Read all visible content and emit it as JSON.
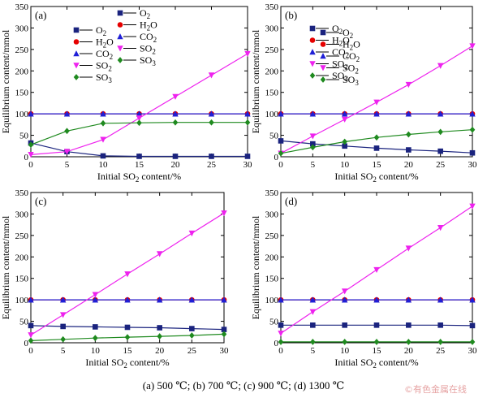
{
  "caption": "(a) 500 ℃; (b) 700 ℃; (c) 900 ℃; (d) 1300 ℃",
  "watermark": "©有色金属在线",
  "colors": {
    "O2": "#1a237e",
    "H2O": "#e60000",
    "CO2": "#1f1fd6",
    "SO2": "#ee22ee",
    "SO3": "#1f8a1f"
  },
  "chart_data": [
    {
      "type": "line",
      "panel_label": "(a)",
      "xlabel_parts": [
        "Initial SO",
        "2",
        " content/%"
      ],
      "ylabel": "Equilibrium content/mmol",
      "xlim": [
        0,
        30
      ],
      "ylim": [
        0,
        350
      ],
      "xticks": [
        0,
        5,
        10,
        15,
        20,
        25,
        30
      ],
      "yticks": [
        0,
        50,
        100,
        150,
        200,
        250,
        300,
        350
      ],
      "legend_pos": "upper-center",
      "series": [
        {
          "key": "O2",
          "label": "O",
          "sub": "2",
          "marker": "square",
          "x": [
            0,
            5,
            10,
            15,
            20,
            25,
            30
          ],
          "y": [
            32,
            12,
            2,
            1,
            1,
            1,
            1
          ]
        },
        {
          "key": "H2O",
          "label": "H",
          "sub": "2",
          "label2": "O",
          "marker": "circle",
          "x": [
            0,
            5,
            10,
            15,
            20,
            25,
            30
          ],
          "y": [
            100,
            100,
            100,
            100,
            100,
            100,
            100
          ]
        },
        {
          "key": "CO2",
          "label": "CO",
          "sub": "2",
          "marker": "triangle-up",
          "x": [
            0,
            5,
            10,
            15,
            20,
            25,
            30
          ],
          "y": [
            100,
            100,
            100,
            100,
            100,
            100,
            100
          ]
        },
        {
          "key": "SO2",
          "label": "SO",
          "sub": "2",
          "marker": "triangle-down",
          "x": [
            0,
            5,
            10,
            15,
            20,
            25,
            30
          ],
          "y": [
            5,
            12,
            40,
            90,
            140,
            190,
            240
          ]
        },
        {
          "key": "SO3",
          "label": "SO",
          "sub": "3",
          "marker": "diamond",
          "x": [
            0,
            5,
            10,
            15,
            20,
            25,
            30
          ],
          "y": [
            28,
            60,
            78,
            79,
            80,
            80,
            80
          ]
        }
      ]
    },
    {
      "type": "line",
      "panel_label": "(b)",
      "xlabel_parts": [
        "Initial SO",
        "2",
        " content/%"
      ],
      "ylabel": "Equilibrium content/mmol",
      "xlim": [
        0,
        30
      ],
      "ylim": [
        0,
        350
      ],
      "xticks": [
        0,
        5,
        10,
        15,
        20,
        25,
        30
      ],
      "yticks": [
        0,
        50,
        100,
        150,
        200,
        250,
        300,
        350
      ],
      "legend_pos": "upper-center",
      "series": [
        {
          "key": "O2",
          "label": "O",
          "sub": "2",
          "marker": "square",
          "x": [
            0,
            5,
            10,
            15,
            20,
            25,
            30
          ],
          "y": [
            37,
            30,
            25,
            20,
            16,
            13,
            9
          ]
        },
        {
          "key": "H2O",
          "label": "H",
          "sub": "2",
          "label2": "O",
          "marker": "circle",
          "x": [
            0,
            5,
            10,
            15,
            20,
            25,
            30
          ],
          "y": [
            100,
            100,
            100,
            100,
            100,
            100,
            100
          ]
        },
        {
          "key": "CO2",
          "label": "CO",
          "sub": "2",
          "marker": "triangle-up",
          "x": [
            0,
            5,
            10,
            15,
            20,
            25,
            30
          ],
          "y": [
            100,
            100,
            100,
            100,
            100,
            100,
            100
          ]
        },
        {
          "key": "SO2",
          "label": "SO",
          "sub": "2",
          "marker": "triangle-down",
          "x": [
            0,
            5,
            10,
            15,
            20,
            25,
            30
          ],
          "y": [
            8,
            48,
            87,
            127,
            168,
            212,
            258
          ]
        },
        {
          "key": "SO3",
          "label": "SO",
          "sub": "3",
          "marker": "diamond",
          "x": [
            0,
            5,
            10,
            15,
            20,
            25,
            30
          ],
          "y": [
            8,
            22,
            35,
            45,
            52,
            58,
            63
          ]
        }
      ]
    },
    {
      "type": "line",
      "panel_label": "(c)",
      "xlabel_parts": [
        "Initial SO",
        "2",
        " content/%"
      ],
      "ylabel": "Equilibrium content/mmol",
      "xlim": [
        0,
        30
      ],
      "ylim": [
        0,
        350
      ],
      "xticks": [
        0,
        5,
        10,
        15,
        20,
        25,
        30
      ],
      "yticks": [
        0,
        50,
        100,
        150,
        200,
        250,
        300,
        350
      ],
      "legend_pos": "middle-left",
      "series": [
        {
          "key": "O2",
          "label": "O",
          "sub": "2",
          "marker": "square",
          "x": [
            0,
            5,
            10,
            15,
            20,
            25,
            30
          ],
          "y": [
            40,
            38,
            37,
            36,
            35,
            33,
            31
          ]
        },
        {
          "key": "H2O",
          "label": "H",
          "sub": "2",
          "label2": "O",
          "marker": "circle",
          "x": [
            0,
            5,
            10,
            15,
            20,
            25,
            30
          ],
          "y": [
            100,
            100,
            100,
            100,
            100,
            100,
            100
          ]
        },
        {
          "key": "CO2",
          "label": "CO",
          "sub": "2",
          "marker": "triangle-up",
          "x": [
            0,
            5,
            10,
            15,
            20,
            25,
            30
          ],
          "y": [
            100,
            100,
            100,
            100,
            100,
            100,
            100
          ]
        },
        {
          "key": "SO2",
          "label": "SO",
          "sub": "2",
          "marker": "triangle-down",
          "x": [
            0,
            5,
            10,
            15,
            20,
            25,
            30
          ],
          "y": [
            18,
            65,
            112,
            160,
            207,
            255,
            302
          ]
        },
        {
          "key": "SO3",
          "label": "SO",
          "sub": "3",
          "marker": "diamond",
          "x": [
            0,
            5,
            10,
            15,
            20,
            25,
            30
          ],
          "y": [
            5,
            8,
            11,
            13,
            15,
            17,
            20
          ]
        }
      ]
    },
    {
      "type": "line",
      "panel_label": "(d)",
      "xlabel_parts": [
        "Initial SO",
        "2",
        " content/%"
      ],
      "ylabel": "Equilibrium content/mmol",
      "xlim": [
        0,
        30
      ],
      "ylim": [
        0,
        350
      ],
      "xticks": [
        0,
        5,
        10,
        15,
        20,
        25,
        30
      ],
      "yticks": [
        0,
        50,
        100,
        150,
        200,
        250,
        300,
        350
      ],
      "legend_pos": "upper-center",
      "series": [
        {
          "key": "O2",
          "label": "O",
          "sub": "2",
          "marker": "square",
          "x": [
            0,
            5,
            10,
            15,
            20,
            25,
            30
          ],
          "y": [
            41,
            41,
            41,
            41,
            41,
            41,
            40
          ]
        },
        {
          "key": "H2O",
          "label": "H",
          "sub": "2",
          "label2": "O",
          "marker": "circle",
          "x": [
            0,
            5,
            10,
            15,
            20,
            25,
            30
          ],
          "y": [
            100,
            100,
            100,
            100,
            100,
            100,
            100
          ]
        },
        {
          "key": "CO2",
          "label": "CO",
          "sub": "2",
          "marker": "triangle-up",
          "x": [
            0,
            5,
            10,
            15,
            20,
            25,
            30
          ],
          "y": [
            100,
            100,
            100,
            100,
            100,
            100,
            100
          ]
        },
        {
          "key": "SO2",
          "label": "SO",
          "sub": "2",
          "marker": "triangle-down",
          "x": [
            0,
            5,
            10,
            15,
            20,
            25,
            30
          ],
          "y": [
            22,
            72,
            120,
            170,
            220,
            268,
            318
          ]
        },
        {
          "key": "SO3",
          "label": "SO",
          "sub": "3",
          "marker": "diamond",
          "x": [
            0,
            5,
            10,
            15,
            20,
            25,
            30
          ],
          "y": [
            2,
            2,
            2,
            2,
            2,
            2,
            2
          ]
        }
      ]
    }
  ]
}
